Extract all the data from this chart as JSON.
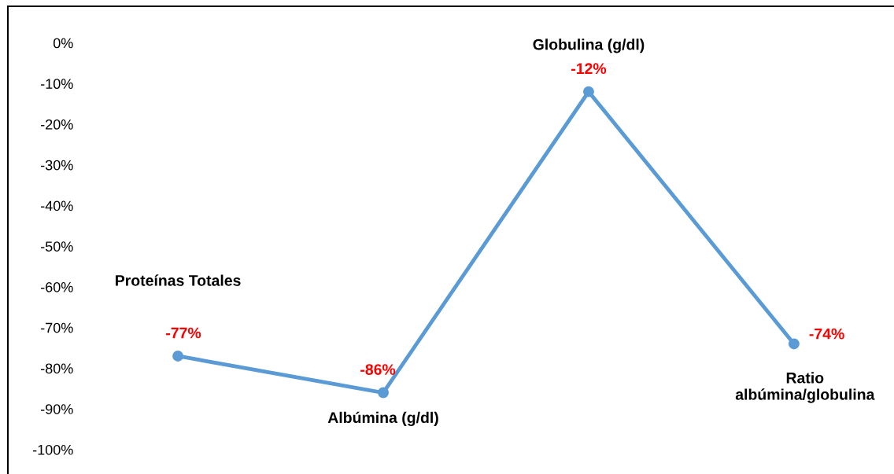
{
  "chart_data": {
    "type": "line",
    "categories": [
      null,
      null,
      null,
      null
    ],
    "annotations": [
      "Proteínas Totales",
      "Albúmina (g/dl)",
      "Globulina (g/dl)",
      "Ratio\nalbúmina/globulina"
    ],
    "series": [
      {
        "color": "#5b9bd5",
        "values": [
          -77,
          -86,
          -12,
          -74
        ],
        "value_labels": [
          "-77%",
          "-86%",
          "-12%",
          "-74%"
        ]
      }
    ],
    "ylim": [
      -106,
      9
    ],
    "yticks": [
      {
        "value": 0,
        "label": "0%"
      },
      {
        "value": -10,
        "label": "-10%"
      },
      {
        "value": -20,
        "label": "-20%"
      },
      {
        "value": -30,
        "label": "-30%"
      },
      {
        "value": -40,
        "label": "-40%"
      },
      {
        "value": -50,
        "label": "-50%"
      },
      {
        "value": -60,
        "label": "-60%"
      },
      {
        "value": -70,
        "label": "-70%"
      },
      {
        "value": -80,
        "label": "-80%"
      },
      {
        "value": -90,
        "label": "-90%"
      },
      {
        "value": -100,
        "label": "-100%"
      }
    ],
    "grid": false,
    "legend": false,
    "marker": "circle",
    "line_style": "solid"
  }
}
